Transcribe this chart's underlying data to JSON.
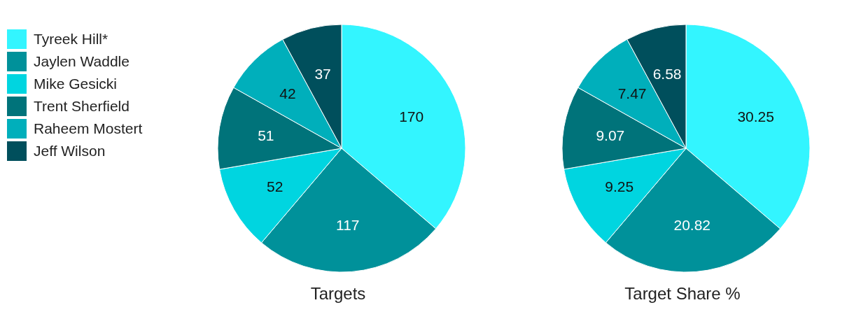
{
  "chart_data": [
    {
      "type": "pie",
      "title": "Targets",
      "categories": [
        "Tyreek Hill*",
        "Jaylen Waddle",
        "Mike Gesicki",
        "Trent Sherfield",
        "Raheem Mostert",
        "Jeff Wilson"
      ],
      "values": [
        170,
        117,
        52,
        51,
        42,
        37
      ],
      "colors": [
        "#33f5ff",
        "#00919a",
        "#00d5e0",
        "#00737a",
        "#00afbb",
        "#004f5c"
      ],
      "data_labels": true,
      "legend": "left"
    },
    {
      "type": "pie",
      "title": "Target Share %",
      "categories": [
        null,
        null,
        null,
        null,
        null,
        null
      ],
      "values": [
        30.25,
        20.82,
        9.25,
        9.07,
        7.47,
        6.58
      ],
      "colors": [
        "#33f5ff",
        "#00919a",
        "#00d5e0",
        "#00737a",
        "#00afbb",
        "#004f5c"
      ],
      "data_labels": true
    }
  ]
}
